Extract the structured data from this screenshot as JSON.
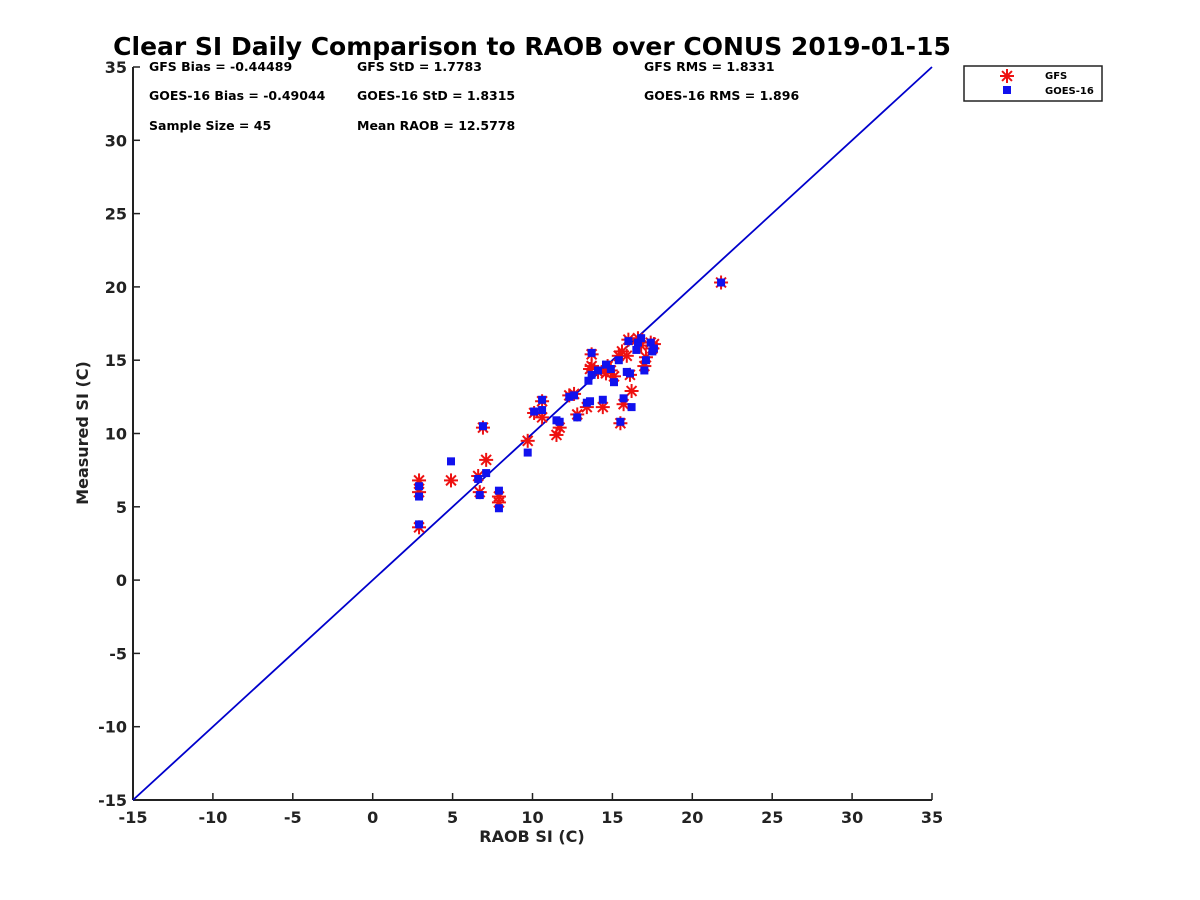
{
  "chart_data": {
    "type": "scatter",
    "title": "Clear SI Daily Comparison to RAOB over CONUS 2019-01-15",
    "xlabel": "RAOB SI (C)",
    "ylabel": "Measured SI (C)",
    "xlim": [
      -15,
      35
    ],
    "ylim": [
      -15,
      35
    ],
    "xticks": [
      "-15",
      "-10",
      "-5",
      "0",
      "5",
      "10",
      "15",
      "20",
      "25",
      "30",
      "35"
    ],
    "yticks": [
      "-15",
      "-10",
      "-5",
      "0",
      "5",
      "10",
      "15",
      "20",
      "25",
      "30",
      "35"
    ],
    "grid": false,
    "legend_position": "outside-top-right",
    "reference_line": {
      "from": [
        -15,
        -15
      ],
      "to": [
        35,
        35
      ],
      "color": "#0000cc"
    },
    "annotations": [
      [
        "GFS Bias = -0.44489",
        "GFS StD = 1.7783",
        "GFS RMS = 1.8331"
      ],
      [
        "GOES-16 Bias = -0.49044",
        "GOES-16 StD = 1.8315",
        "GOES-16 RMS = 1.896"
      ],
      [
        "Sample Size = 45",
        "Mean RAOB = 12.5778",
        ""
      ]
    ],
    "series": [
      {
        "name": "GFS",
        "marker": "asterisk",
        "color": "#ee1111",
        "points": [
          [
            2.9,
            6.8
          ],
          [
            2.9,
            6.0
          ],
          [
            2.9,
            3.6
          ],
          [
            4.9,
            6.8
          ],
          [
            6.6,
            7.1
          ],
          [
            6.7,
            6.0
          ],
          [
            6.9,
            10.4
          ],
          [
            7.1,
            8.2
          ],
          [
            7.9,
            5.7
          ],
          [
            7.9,
            5.3
          ],
          [
            9.7,
            9.5
          ],
          [
            10.1,
            11.4
          ],
          [
            10.6,
            12.2
          ],
          [
            10.6,
            11.1
          ],
          [
            11.5,
            9.9
          ],
          [
            11.7,
            10.4
          ],
          [
            12.3,
            12.6
          ],
          [
            12.6,
            12.7
          ],
          [
            12.8,
            11.3
          ],
          [
            13.4,
            11.8
          ],
          [
            13.6,
            14.4
          ],
          [
            13.7,
            15.4
          ],
          [
            13.7,
            14.6
          ],
          [
            14.1,
            14.2
          ],
          [
            14.4,
            11.8
          ],
          [
            14.6,
            14.1
          ],
          [
            14.9,
            14.3
          ],
          [
            15.1,
            13.9
          ],
          [
            15.4,
            15.3
          ],
          [
            15.5,
            10.7
          ],
          [
            15.7,
            12.0
          ],
          [
            15.9,
            15.3
          ],
          [
            16.0,
            16.4
          ],
          [
            16.1,
            14.0
          ],
          [
            16.2,
            12.9
          ],
          [
            16.6,
            16.5
          ],
          [
            16.8,
            16.0
          ],
          [
            17.0,
            14.6
          ],
          [
            17.1,
            15.2
          ],
          [
            17.4,
            16.2
          ],
          [
            17.5,
            15.8
          ],
          [
            17.6,
            16.1
          ],
          [
            21.8,
            20.3
          ],
          [
            14.7,
            14.6
          ],
          [
            15.6,
            15.6
          ]
        ]
      },
      {
        "name": "GOES-16",
        "marker": "square",
        "color": "#1111ee",
        "points": [
          [
            2.9,
            6.4
          ],
          [
            2.9,
            5.7
          ],
          [
            2.9,
            3.8
          ],
          [
            4.9,
            8.1
          ],
          [
            6.6,
            6.9
          ],
          [
            6.7,
            5.8
          ],
          [
            6.9,
            10.5
          ],
          [
            7.1,
            7.3
          ],
          [
            7.9,
            6.1
          ],
          [
            7.9,
            4.9
          ],
          [
            9.7,
            8.7
          ],
          [
            10.1,
            11.5
          ],
          [
            10.6,
            12.3
          ],
          [
            10.6,
            11.6
          ],
          [
            11.5,
            10.9
          ],
          [
            11.7,
            10.8
          ],
          [
            12.3,
            12.5
          ],
          [
            12.6,
            12.6
          ],
          [
            12.8,
            11.1
          ],
          [
            13.4,
            12.1
          ],
          [
            13.6,
            12.2
          ],
          [
            13.7,
            15.5
          ],
          [
            13.7,
            14.0
          ],
          [
            14.1,
            14.3
          ],
          [
            14.4,
            12.3
          ],
          [
            14.6,
            14.7
          ],
          [
            14.9,
            14.4
          ],
          [
            15.1,
            13.5
          ],
          [
            15.4,
            15.0
          ],
          [
            15.5,
            10.8
          ],
          [
            15.7,
            12.4
          ],
          [
            15.9,
            14.2
          ],
          [
            16.0,
            16.3
          ],
          [
            16.1,
            14.1
          ],
          [
            16.2,
            11.8
          ],
          [
            16.6,
            16.2
          ],
          [
            16.8,
            16.5
          ],
          [
            17.0,
            14.3
          ],
          [
            17.1,
            15.0
          ],
          [
            17.4,
            16.2
          ],
          [
            17.5,
            15.6
          ],
          [
            17.6,
            15.8
          ],
          [
            21.8,
            20.3
          ],
          [
            13.5,
            13.6
          ],
          [
            16.5,
            15.7
          ]
        ]
      }
    ]
  }
}
